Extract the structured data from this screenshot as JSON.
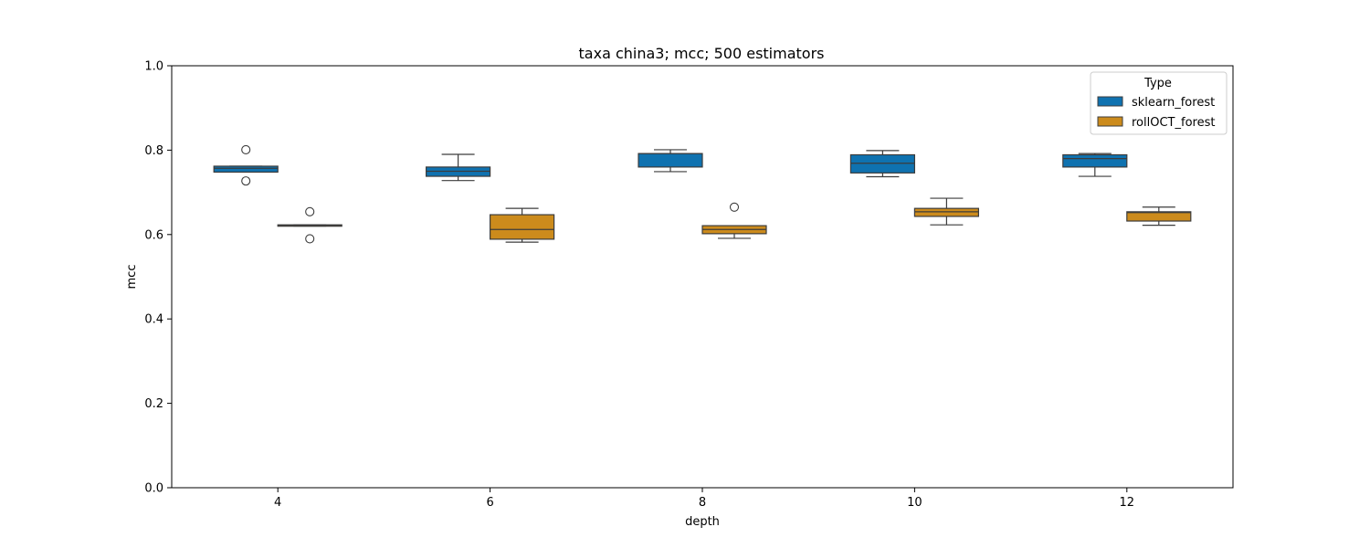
{
  "chart_data": {
    "type": "box",
    "title": "taxa china3; mcc; 500 estimators",
    "xlabel": "depth",
    "ylabel": "mcc",
    "ylim": [
      0,
      1.0
    ],
    "yticks": [
      "0.0",
      "0.2",
      "0.4",
      "0.6",
      "0.8",
      "1.0"
    ],
    "categories": [
      "4",
      "6",
      "8",
      "10",
      "12"
    ],
    "legend": {
      "title": "Type",
      "position": "top-right"
    },
    "series": [
      {
        "name": "sklearn_forest",
        "color": "#0f72b0",
        "boxes": [
          {
            "whisker_low": 0.748,
            "q1": 0.748,
            "median": 0.757,
            "q3": 0.762,
            "whisker_high": 0.762,
            "outliers": [
              0.801,
              0.727
            ]
          },
          {
            "whisker_low": 0.728,
            "q1": 0.738,
            "median": 0.75,
            "q3": 0.76,
            "whisker_high": 0.79,
            "outliers": []
          },
          {
            "whisker_low": 0.749,
            "q1": 0.76,
            "median": 0.792,
            "q3": 0.792,
            "whisker_high": 0.801,
            "outliers": []
          },
          {
            "whisker_low": 0.737,
            "q1": 0.746,
            "median": 0.769,
            "q3": 0.789,
            "whisker_high": 0.799,
            "outliers": []
          },
          {
            "whisker_low": 0.738,
            "q1": 0.76,
            "median": 0.78,
            "q3": 0.789,
            "whisker_high": 0.792,
            "outliers": []
          }
        ]
      },
      {
        "name": "rollOCT_forest",
        "color": "#cc8b1c",
        "boxes": [
          {
            "whisker_low": 0.62,
            "q1": 0.62,
            "median": 0.622,
            "q3": 0.623,
            "whisker_high": 0.623,
            "outliers": [
              0.654,
              0.59
            ]
          },
          {
            "whisker_low": 0.582,
            "q1": 0.589,
            "median": 0.612,
            "q3": 0.647,
            "whisker_high": 0.662,
            "outliers": []
          },
          {
            "whisker_low": 0.591,
            "q1": 0.602,
            "median": 0.612,
            "q3": 0.621,
            "whisker_high": 0.621,
            "outliers": [
              0.665
            ]
          },
          {
            "whisker_low": 0.623,
            "q1": 0.643,
            "median": 0.654,
            "q3": 0.662,
            "whisker_high": 0.686,
            "outliers": []
          },
          {
            "whisker_low": 0.622,
            "q1": 0.632,
            "median": 0.652,
            "q3": 0.654,
            "whisker_high": 0.665,
            "outliers": []
          }
        ]
      }
    ]
  }
}
